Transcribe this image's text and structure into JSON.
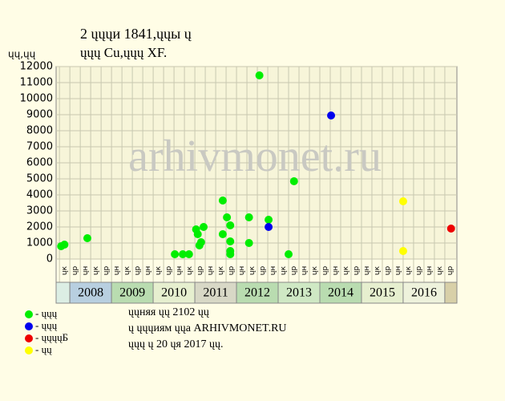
{
  "chart_data": {
    "type": "scatter",
    "title": "2 ųųųи 1841,ųųы ų",
    "subtitle": "ųųų Cu,ųųų XF.",
    "y_label": "ųų,ųų",
    "watermark": "arhivmonet.ru",
    "xlim": [
      2007.67,
      2017.29
    ],
    "ylim": [
      0,
      12000
    ],
    "yticks": [
      0,
      1000,
      2000,
      3000,
      4000,
      5000,
      6000,
      7000,
      8000,
      9000,
      10000,
      11000,
      12000
    ],
    "xticks": [
      2008,
      2009,
      2010,
      2011,
      2012,
      2013,
      2014,
      2015,
      2016
    ],
    "year_colors": [
      "#b8cfe0",
      "#b9dcb0",
      "#e6efcf",
      "#d8d8c6",
      "#b9dcb0",
      "#cfe8c4",
      "#b9dcb0",
      "#e6efcf",
      "#eef2dc"
    ],
    "quarter_labels": [
      "ųк",
      "ųр",
      "ųн",
      "ųк",
      "ųр",
      "ųн",
      "ųк",
      "ųр",
      "ųн",
      "ųк",
      "ųр",
      "ųн",
      "ųк",
      "ųр",
      "ųн",
      "ųк",
      "ųр",
      "ųн",
      "ųк",
      "ųр",
      "ųн",
      "ųк",
      "ųр",
      "ųн",
      "ųк",
      "ųр",
      "ųн",
      "ųк",
      "ųр",
      "ųн",
      "ųк",
      "ųр",
      "ųн",
      "ųк",
      "ųр",
      "ųн",
      "ųк",
      "ųр"
    ],
    "grid": true,
    "series": [
      {
        "name": "- ųųų",
        "color": "#00ee00",
        "x": [
          2007.79,
          2007.87,
          2008.42,
          2010.52,
          2010.71,
          2010.86,
          2011.03,
          2011.07,
          2011.11,
          2011.15,
          2011.21,
          2011.67,
          2011.67,
          2011.77,
          2011.85,
          2011.85,
          2011.85,
          2011.85,
          2012.3,
          2012.3,
          2012.55,
          2012.77,
          2013.25,
          2013.38
        ],
        "values": [
          800,
          900,
          1300,
          300,
          300,
          300,
          1850,
          1550,
          850,
          1050,
          2000,
          3650,
          1550,
          2600,
          2100,
          1100,
          500,
          300,
          2600,
          1000,
          11450,
          2450,
          300,
          4850
        ]
      },
      {
        "name": "- ųųų",
        "color": "#0000ee",
        "x": [
          2012.77,
          2014.27
        ],
        "values": [
          2000,
          8950
        ]
      },
      {
        "name": "- ųųųųБ",
        "color": "#ee0000",
        "x": [
          2017.15
        ],
        "values": [
          1900
        ]
      },
      {
        "name": "- ųų",
        "color": "#ffff00",
        "x": [
          2016.0,
          2016.0
        ],
        "values": [
          3600,
          500
        ]
      }
    ],
    "notes": [
      "ųųняя ųų 2102 ųų",
      "ų ųųųиям ųųа ARHIVMONET.RU",
      "ųųų ų 20 ųя 2017 ųų."
    ]
  }
}
